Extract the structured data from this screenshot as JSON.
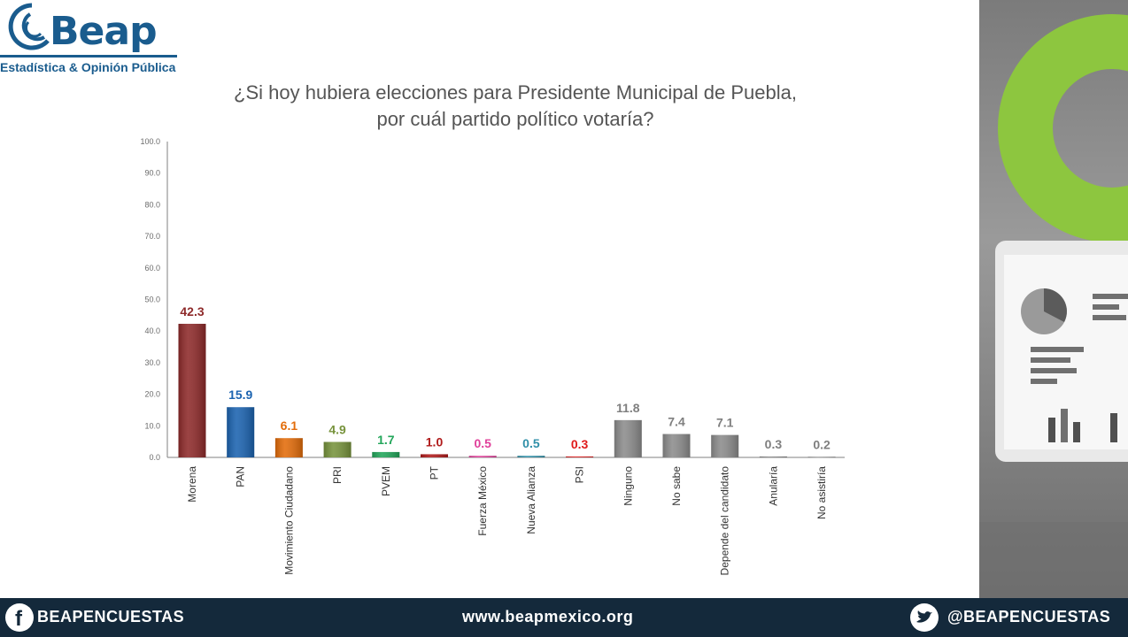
{
  "logo": {
    "word": "Beap",
    "subtitle": "Estadística & Opinión Pública"
  },
  "title_lines": [
    "¿Si hoy hubiera elecciones para Presidente Municipal de Puebla,",
    "por cuál partido político votaría?"
  ],
  "chart_data": {
    "type": "bar",
    "categories": [
      "Morena",
      "PAN",
      "Movimiento Ciudadano",
      "PRI",
      "PVEM",
      "PT",
      "Fuerza México",
      "Nueva Alianza",
      "PSI",
      "Ninguno",
      "No sabe",
      "Depende del candidato",
      "Anularía",
      "No asistiría"
    ],
    "values": [
      42.3,
      15.9,
      6.1,
      4.9,
      1.7,
      1.0,
      0.5,
      0.5,
      0.3,
      11.8,
      7.4,
      7.1,
      0.3,
      0.2
    ],
    "value_labels": [
      "42.3",
      "15.9",
      "6.1",
      "4.9",
      "1.7",
      "1.0",
      "0.5",
      "0.5",
      "0.3",
      "11.8",
      "7.4",
      "7.1",
      "0.3",
      "0.2"
    ],
    "colors": [
      "#8e2a2a",
      "#1b63b0",
      "#e36c0a",
      "#77933c",
      "#22a65a",
      "#b01a1a",
      "#e0409a",
      "#2f8fa8",
      "#e01a1a",
      "#8c8c8c",
      "#8c8c8c",
      "#8c8c8c",
      "#8c8c8c",
      "#8c8c8c"
    ],
    "label_colors": [
      "#8e2a2a",
      "#1b63b0",
      "#e36c0a",
      "#77933c",
      "#22a65a",
      "#b01a1a",
      "#e0409a",
      "#2f8fa8",
      "#e01a1a",
      "#7f7f7f",
      "#7f7f7f",
      "#7f7f7f",
      "#7f7f7f",
      "#7f7f7f"
    ],
    "ylim": [
      0,
      100
    ],
    "yticks": [
      "0.0",
      "10.0",
      "20.0",
      "30.0",
      "40.0",
      "50.0",
      "60.0",
      "70.0",
      "80.0",
      "90.0",
      "100.0"
    ],
    "grid": false
  },
  "footer": {
    "left_text": "BEAPENCUESTAS",
    "center_text": "www.beapmexico.org",
    "right_text": "@BEAPENCUESTAS",
    "left_icon": "facebook-icon",
    "right_icon": "twitter-icon"
  }
}
